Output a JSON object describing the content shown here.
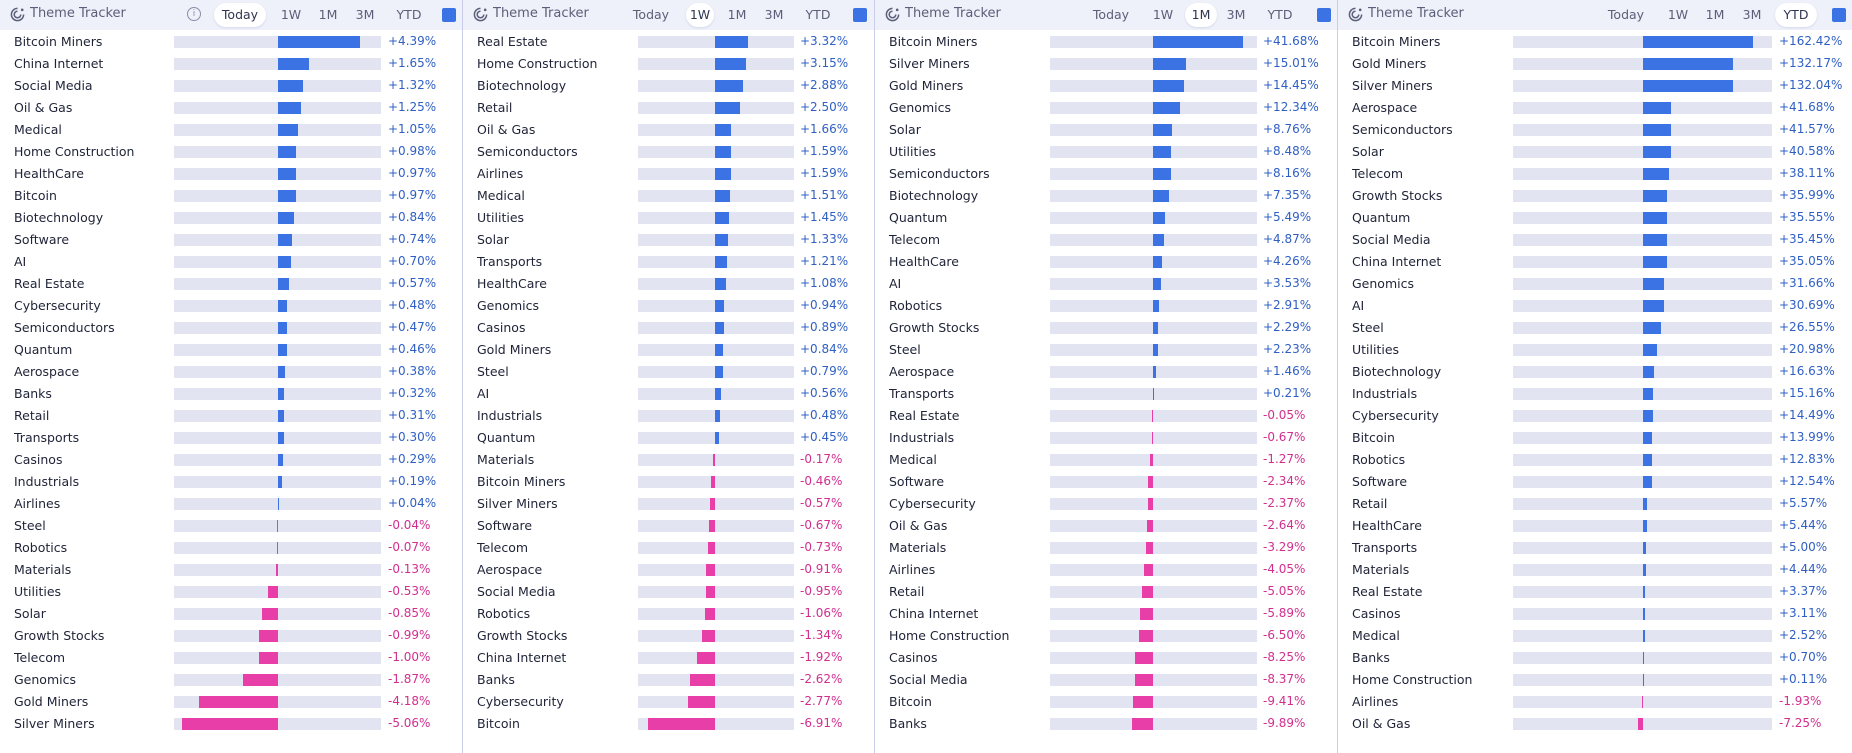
{
  "colors": {
    "positive": "#3b73e4",
    "negative": "#e83ea8",
    "pos_text": "#2f5fc4",
    "neg_text": "#d12f8f"
  },
  "panels": [
    {
      "title": "Theme Tracker",
      "tabs": [
        "Today",
        "1W",
        "1M",
        "3M",
        "YTD"
      ],
      "active_tab": "Today",
      "scale_max": 5.5,
      "items": [
        {
          "name": "Bitcoin Miners",
          "value": 4.39,
          "label": "+4.39%"
        },
        {
          "name": "China Internet",
          "value": 1.65,
          "label": "+1.65%"
        },
        {
          "name": "Social Media",
          "value": 1.32,
          "label": "+1.32%"
        },
        {
          "name": "Oil & Gas",
          "value": 1.25,
          "label": "+1.25%"
        },
        {
          "name": "Medical",
          "value": 1.05,
          "label": "+1.05%"
        },
        {
          "name": "Home Construction",
          "value": 0.98,
          "label": "+0.98%"
        },
        {
          "name": "HealthCare",
          "value": 0.97,
          "label": "+0.97%"
        },
        {
          "name": "Bitcoin",
          "value": 0.97,
          "label": "+0.97%"
        },
        {
          "name": "Biotechnology",
          "value": 0.84,
          "label": "+0.84%"
        },
        {
          "name": "Software",
          "value": 0.74,
          "label": "+0.74%"
        },
        {
          "name": "AI",
          "value": 0.7,
          "label": "+0.70%"
        },
        {
          "name": "Real Estate",
          "value": 0.57,
          "label": "+0.57%"
        },
        {
          "name": "Cybersecurity",
          "value": 0.48,
          "label": "+0.48%"
        },
        {
          "name": "Semiconductors",
          "value": 0.47,
          "label": "+0.47%"
        },
        {
          "name": "Quantum",
          "value": 0.46,
          "label": "+0.46%"
        },
        {
          "name": "Aerospace",
          "value": 0.38,
          "label": "+0.38%"
        },
        {
          "name": "Banks",
          "value": 0.32,
          "label": "+0.32%"
        },
        {
          "name": "Retail",
          "value": 0.31,
          "label": "+0.31%"
        },
        {
          "name": "Transports",
          "value": 0.3,
          "label": "+0.30%"
        },
        {
          "name": "Casinos",
          "value": 0.29,
          "label": "+0.29%"
        },
        {
          "name": "Industrials",
          "value": 0.19,
          "label": "+0.19%"
        },
        {
          "name": "Airlines",
          "value": 0.04,
          "label": "+0.04%"
        },
        {
          "name": "Steel",
          "value": -0.04,
          "label": "-0.04%"
        },
        {
          "name": "Robotics",
          "value": -0.07,
          "label": "-0.07%"
        },
        {
          "name": "Materials",
          "value": -0.13,
          "label": "-0.13%"
        },
        {
          "name": "Utilities",
          "value": -0.53,
          "label": "-0.53%"
        },
        {
          "name": "Solar",
          "value": -0.85,
          "label": "-0.85%"
        },
        {
          "name": "Growth Stocks",
          "value": -0.99,
          "label": "-0.99%"
        },
        {
          "name": "Telecom",
          "value": -1.0,
          "label": "-1.00%"
        },
        {
          "name": "Genomics",
          "value": -1.87,
          "label": "-1.87%"
        },
        {
          "name": "Gold Miners",
          "value": -4.18,
          "label": "-4.18%"
        },
        {
          "name": "Silver Miners",
          "value": -5.06,
          "label": "-5.06%"
        }
      ]
    },
    {
      "title": "Theme Tracker",
      "tabs": [
        "Today",
        "1W",
        "1M",
        "3M",
        "YTD"
      ],
      "active_tab": "1W",
      "scale_max": 8.0,
      "items": [
        {
          "name": "Real Estate",
          "value": 3.32,
          "label": "+3.32%"
        },
        {
          "name": "Home Construction",
          "value": 3.15,
          "label": "+3.15%"
        },
        {
          "name": "Biotechnology",
          "value": 2.88,
          "label": "+2.88%"
        },
        {
          "name": "Retail",
          "value": 2.5,
          "label": "+2.50%"
        },
        {
          "name": "Oil & Gas",
          "value": 1.66,
          "label": "+1.66%"
        },
        {
          "name": "Semiconductors",
          "value": 1.59,
          "label": "+1.59%"
        },
        {
          "name": "Airlines",
          "value": 1.59,
          "label": "+1.59%"
        },
        {
          "name": "Medical",
          "value": 1.51,
          "label": "+1.51%"
        },
        {
          "name": "Utilities",
          "value": 1.45,
          "label": "+1.45%"
        },
        {
          "name": "Solar",
          "value": 1.33,
          "label": "+1.33%"
        },
        {
          "name": "Transports",
          "value": 1.21,
          "label": "+1.21%"
        },
        {
          "name": "HealthCare",
          "value": 1.08,
          "label": "+1.08%"
        },
        {
          "name": "Genomics",
          "value": 0.94,
          "label": "+0.94%"
        },
        {
          "name": "Casinos",
          "value": 0.89,
          "label": "+0.89%"
        },
        {
          "name": "Gold Miners",
          "value": 0.84,
          "label": "+0.84%"
        },
        {
          "name": "Steel",
          "value": 0.79,
          "label": "+0.79%"
        },
        {
          "name": "AI",
          "value": 0.56,
          "label": "+0.56%"
        },
        {
          "name": "Industrials",
          "value": 0.48,
          "label": "+0.48%"
        },
        {
          "name": "Quantum",
          "value": 0.45,
          "label": "+0.45%"
        },
        {
          "name": "Materials",
          "value": -0.17,
          "label": "-0.17%"
        },
        {
          "name": "Bitcoin Miners",
          "value": -0.46,
          "label": "-0.46%"
        },
        {
          "name": "Silver Miners",
          "value": -0.57,
          "label": "-0.57%"
        },
        {
          "name": "Software",
          "value": -0.67,
          "label": "-0.67%"
        },
        {
          "name": "Telecom",
          "value": -0.73,
          "label": "-0.73%"
        },
        {
          "name": "Aerospace",
          "value": -0.91,
          "label": "-0.91%"
        },
        {
          "name": "Social Media",
          "value": -0.95,
          "label": "-0.95%"
        },
        {
          "name": "Robotics",
          "value": -1.06,
          "label": "-1.06%"
        },
        {
          "name": "Growth Stocks",
          "value": -1.34,
          "label": "-1.34%"
        },
        {
          "name": "China Internet",
          "value": -1.92,
          "label": "-1.92%"
        },
        {
          "name": "Banks",
          "value": -2.62,
          "label": "-2.62%"
        },
        {
          "name": "Cybersecurity",
          "value": -2.77,
          "label": "-2.77%"
        },
        {
          "name": "Bitcoin",
          "value": -6.91,
          "label": "-6.91%"
        }
      ]
    },
    {
      "title": "Theme Tracker",
      "tabs": [
        "Today",
        "1W",
        "1M",
        "3M",
        "YTD"
      ],
      "active_tab": "1M",
      "scale_max": 48.0,
      "items": [
        {
          "name": "Bitcoin Miners",
          "value": 41.68,
          "label": "+41.68%"
        },
        {
          "name": "Silver Miners",
          "value": 15.01,
          "label": "+15.01%"
        },
        {
          "name": "Gold Miners",
          "value": 14.45,
          "label": "+14.45%"
        },
        {
          "name": "Genomics",
          "value": 12.34,
          "label": "+12.34%"
        },
        {
          "name": "Solar",
          "value": 8.76,
          "label": "+8.76%"
        },
        {
          "name": "Utilities",
          "value": 8.48,
          "label": "+8.48%"
        },
        {
          "name": "Semiconductors",
          "value": 8.16,
          "label": "+8.16%"
        },
        {
          "name": "Biotechnology",
          "value": 7.35,
          "label": "+7.35%"
        },
        {
          "name": "Quantum",
          "value": 5.49,
          "label": "+5.49%"
        },
        {
          "name": "Telecom",
          "value": 4.87,
          "label": "+4.87%"
        },
        {
          "name": "HealthCare",
          "value": 4.26,
          "label": "+4.26%"
        },
        {
          "name": "AI",
          "value": 3.53,
          "label": "+3.53%"
        },
        {
          "name": "Robotics",
          "value": 2.91,
          "label": "+2.91%"
        },
        {
          "name": "Growth Stocks",
          "value": 2.29,
          "label": "+2.29%"
        },
        {
          "name": "Steel",
          "value": 2.23,
          "label": "+2.23%"
        },
        {
          "name": "Aerospace",
          "value": 1.46,
          "label": "+1.46%"
        },
        {
          "name": "Transports",
          "value": 0.21,
          "label": "+0.21%"
        },
        {
          "name": "Real Estate",
          "value": -0.05,
          "label": "-0.05%"
        },
        {
          "name": "Industrials",
          "value": -0.67,
          "label": "-0.67%"
        },
        {
          "name": "Medical",
          "value": -1.27,
          "label": "-1.27%"
        },
        {
          "name": "Software",
          "value": -2.34,
          "label": "-2.34%"
        },
        {
          "name": "Cybersecurity",
          "value": -2.37,
          "label": "-2.37%"
        },
        {
          "name": "Oil & Gas",
          "value": -2.64,
          "label": "-2.64%"
        },
        {
          "name": "Materials",
          "value": -3.29,
          "label": "-3.29%"
        },
        {
          "name": "Airlines",
          "value": -4.05,
          "label": "-4.05%"
        },
        {
          "name": "Retail",
          "value": -5.05,
          "label": "-5.05%"
        },
        {
          "name": "China Internet",
          "value": -5.89,
          "label": "-5.89%"
        },
        {
          "name": "Home Construction",
          "value": -6.5,
          "label": "-6.50%"
        },
        {
          "name": "Casinos",
          "value": -8.25,
          "label": "-8.25%"
        },
        {
          "name": "Social Media",
          "value": -8.37,
          "label": "-8.37%"
        },
        {
          "name": "Bitcoin",
          "value": -9.41,
          "label": "-9.41%"
        },
        {
          "name": "Banks",
          "value": -9.89,
          "label": "-9.89%"
        }
      ]
    },
    {
      "title": "Theme Tracker",
      "tabs": [
        "Today",
        "1W",
        "1M",
        "3M",
        "YTD"
      ],
      "active_tab": "YTD",
      "scale_max": 190.0,
      "items": [
        {
          "name": "Bitcoin Miners",
          "value": 162.42,
          "label": "+162.42%"
        },
        {
          "name": "Gold Miners",
          "value": 132.17,
          "label": "+132.17%"
        },
        {
          "name": "Silver Miners",
          "value": 132.04,
          "label": "+132.04%"
        },
        {
          "name": "Aerospace",
          "value": 41.68,
          "label": "+41.68%"
        },
        {
          "name": "Semiconductors",
          "value": 41.57,
          "label": "+41.57%"
        },
        {
          "name": "Solar",
          "value": 40.58,
          "label": "+40.58%"
        },
        {
          "name": "Telecom",
          "value": 38.11,
          "label": "+38.11%"
        },
        {
          "name": "Growth Stocks",
          "value": 35.99,
          "label": "+35.99%"
        },
        {
          "name": "Quantum",
          "value": 35.55,
          "label": "+35.55%"
        },
        {
          "name": "Social Media",
          "value": 35.45,
          "label": "+35.45%"
        },
        {
          "name": "China Internet",
          "value": 35.05,
          "label": "+35.05%"
        },
        {
          "name": "Genomics",
          "value": 31.66,
          "label": "+31.66%"
        },
        {
          "name": "AI",
          "value": 30.69,
          "label": "+30.69%"
        },
        {
          "name": "Steel",
          "value": 26.55,
          "label": "+26.55%"
        },
        {
          "name": "Utilities",
          "value": 20.98,
          "label": "+20.98%"
        },
        {
          "name": "Biotechnology",
          "value": 16.63,
          "label": "+16.63%"
        },
        {
          "name": "Industrials",
          "value": 15.16,
          "label": "+15.16%"
        },
        {
          "name": "Cybersecurity",
          "value": 14.49,
          "label": "+14.49%"
        },
        {
          "name": "Bitcoin",
          "value": 13.99,
          "label": "+13.99%"
        },
        {
          "name": "Robotics",
          "value": 12.83,
          "label": "+12.83%"
        },
        {
          "name": "Software",
          "value": 12.54,
          "label": "+12.54%"
        },
        {
          "name": "Retail",
          "value": 5.57,
          "label": "+5.57%"
        },
        {
          "name": "HealthCare",
          "value": 5.44,
          "label": "+5.44%"
        },
        {
          "name": "Transports",
          "value": 5.0,
          "label": "+5.00%"
        },
        {
          "name": "Materials",
          "value": 4.44,
          "label": "+4.44%"
        },
        {
          "name": "Real Estate",
          "value": 3.37,
          "label": "+3.37%"
        },
        {
          "name": "Casinos",
          "value": 3.11,
          "label": "+3.11%"
        },
        {
          "name": "Medical",
          "value": 2.52,
          "label": "+2.52%"
        },
        {
          "name": "Banks",
          "value": 0.7,
          "label": "+0.70%"
        },
        {
          "name": "Home Construction",
          "value": 0.11,
          "label": "+0.11%"
        },
        {
          "name": "Airlines",
          "value": -1.93,
          "label": "-1.93%"
        },
        {
          "name": "Oil & Gas",
          "value": -7.25,
          "label": "-7.25%"
        }
      ]
    }
  ]
}
